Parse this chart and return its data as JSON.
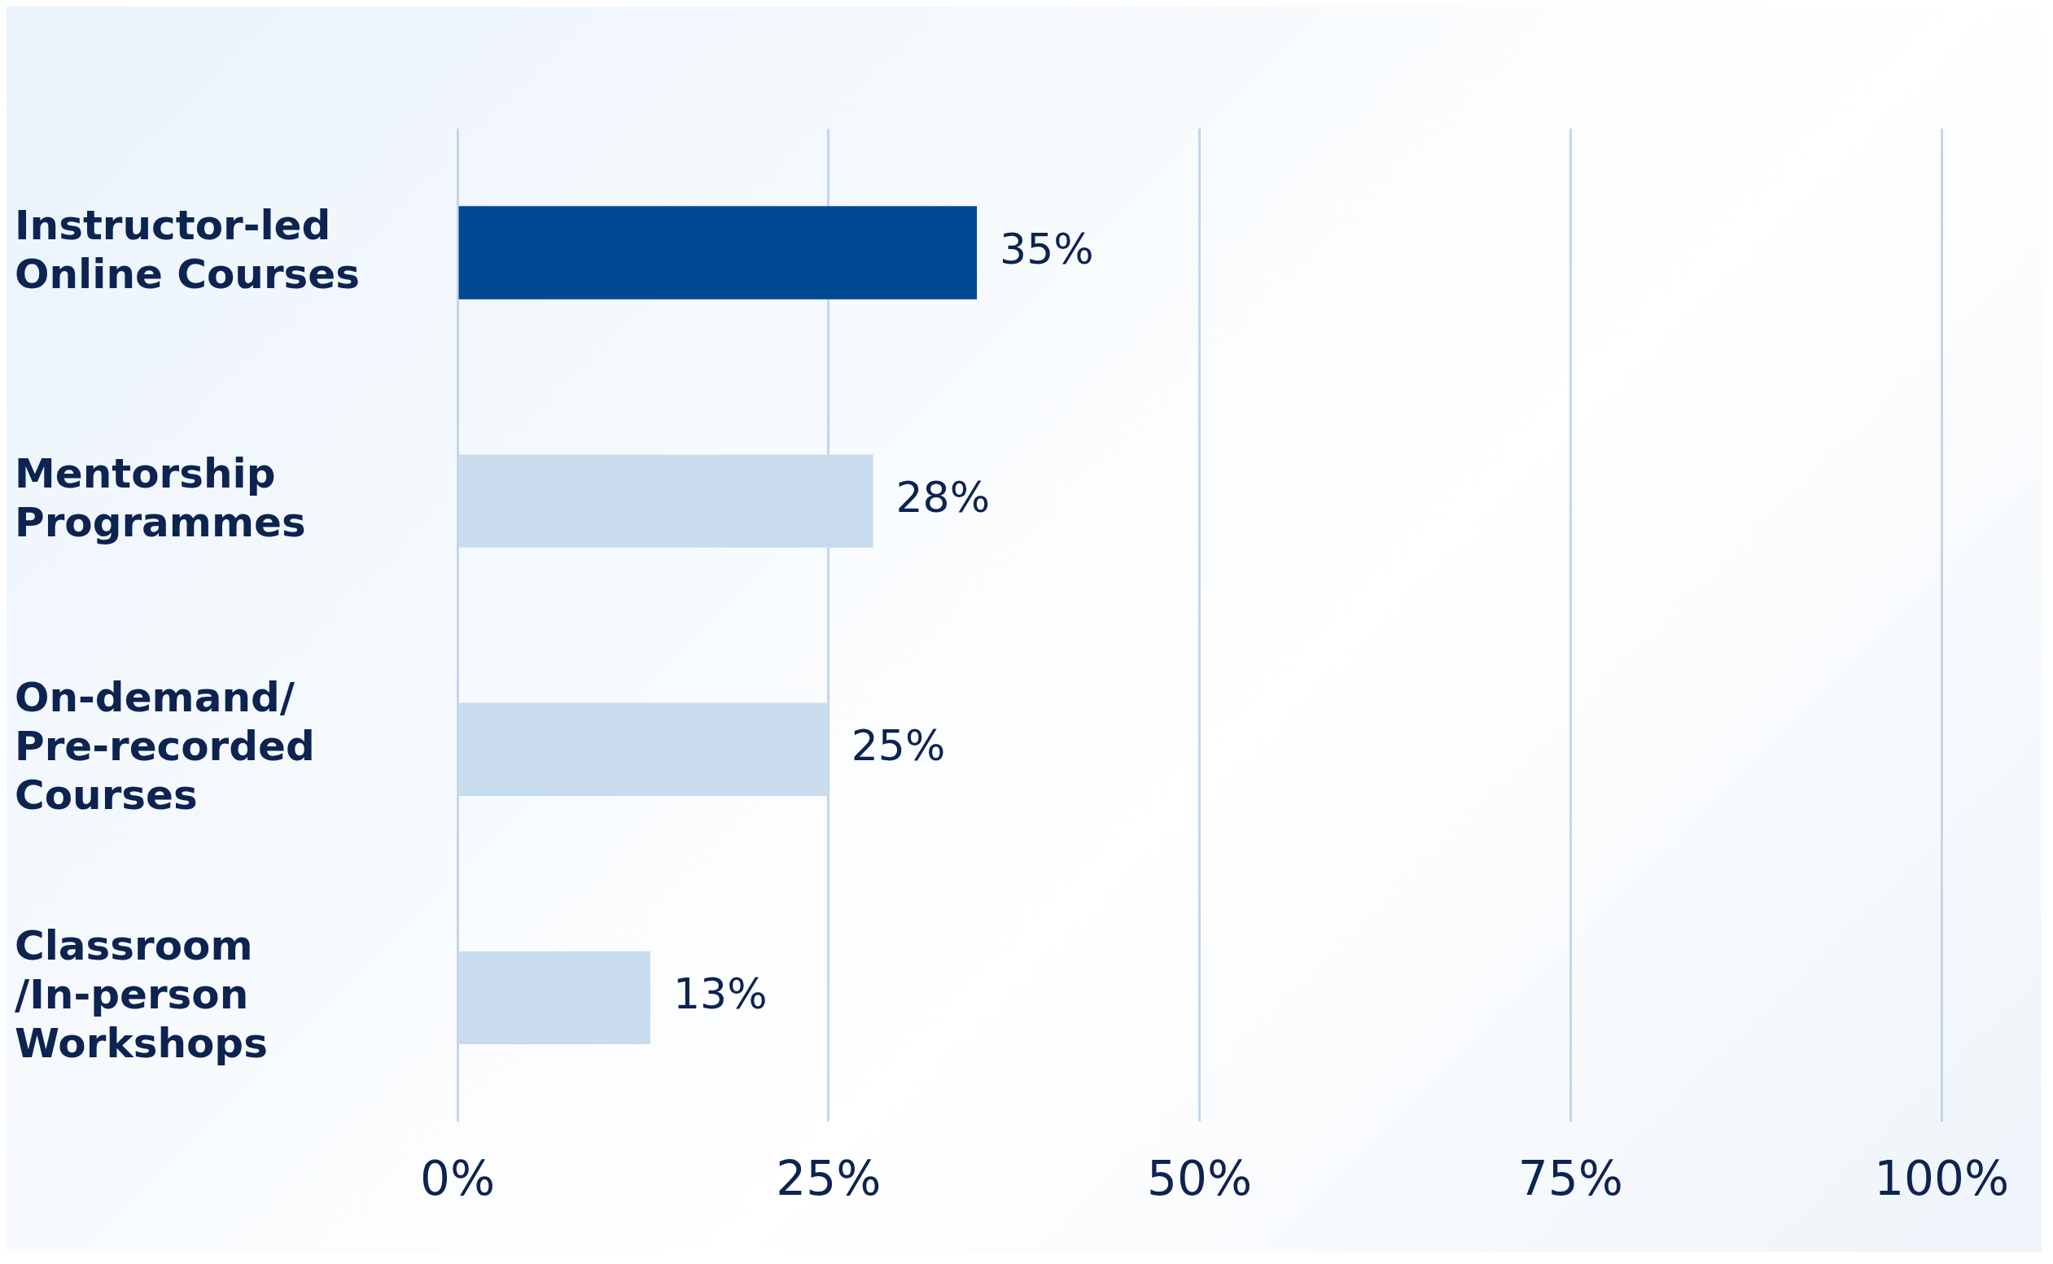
{
  "chart_data": {
    "type": "bar",
    "orientation": "horizontal",
    "categories": [
      "Instructor-led Online Courses",
      "Mentorship Programmes",
      "On-demand/ Pre-recorded Courses",
      "Classroom /In-person Workshops"
    ],
    "values": [
      35,
      28,
      25,
      13
    ],
    "colors": [
      "#004a93",
      "#c9dcee",
      "#c9dcee",
      "#c9dcee"
    ],
    "xlim": [
      0,
      100
    ],
    "xticks": [
      {
        "value": 0,
        "label": "0%"
      },
      {
        "value": 25,
        "label": "25%"
      },
      {
        "value": 50,
        "label": "50%"
      },
      {
        "value": 75,
        "label": "75%"
      },
      {
        "value": 100,
        "label": "100%"
      }
    ],
    "value_labels": [
      "35%",
      "28%",
      "25%",
      "13%"
    ],
    "grid": "x",
    "legend": false
  }
}
